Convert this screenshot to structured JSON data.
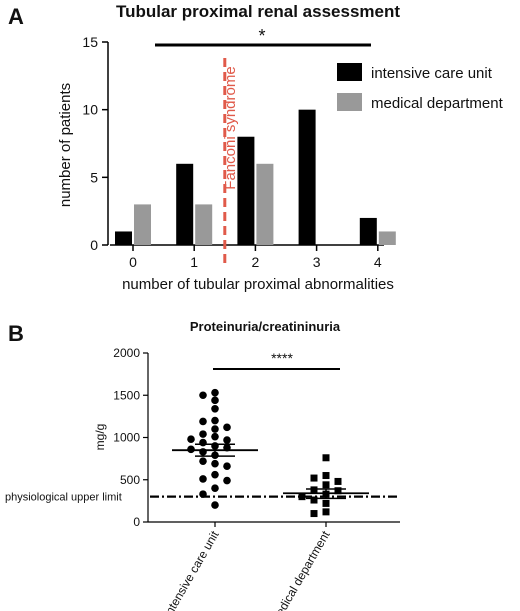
{
  "colors": {
    "icu": "#000000",
    "medical": "#999999",
    "fanconi_line": "#e05a4a",
    "axis": "#000000"
  },
  "panel_a": {
    "panel_label": "A",
    "significance": "*",
    "fanconi_label": "Fanconi syndrome",
    "fanconi_x_position": 1.5
  },
  "panel_b": {
    "panel_label": "B",
    "significance": "****",
    "reference_label": "physiological upper limit",
    "reference_value": 300
  },
  "chart_data": [
    {
      "type": "bar",
      "title": "Tubular proximal renal assessment",
      "xlabel": "number of tubular proximal abnormalities",
      "ylabel": "number of patients",
      "categories": [
        "0",
        "1",
        "2",
        "3",
        "4"
      ],
      "ylim": [
        0,
        15
      ],
      "yticks": [
        0,
        5,
        10,
        15
      ],
      "series": [
        {
          "name": "intensive care unit",
          "values": [
            1,
            6,
            8,
            10,
            2
          ],
          "color": "#000000"
        },
        {
          "name": "medical department",
          "values": [
            3,
            3,
            6,
            0,
            1
          ],
          "color": "#999999"
        }
      ],
      "legend": "top-right",
      "grid": false
    },
    {
      "type": "scatter",
      "title": "Proteinuria/creatininuria",
      "ylabel": "mg/g",
      "categories": [
        "Intensive care unit",
        "medical department"
      ],
      "ylim": [
        0,
        2000
      ],
      "yticks": [
        0,
        500,
        1000,
        1500,
        2000
      ],
      "series": [
        {
          "name": "Intensive care unit",
          "marker": "circle",
          "mean": 850,
          "sem_low": 780,
          "sem_high": 920,
          "values": [
            1530,
            1500,
            1440,
            1340,
            1200,
            1190,
            1120,
            1100,
            1040,
            1010,
            970,
            980,
            940,
            900,
            880,
            860,
            830,
            790,
            720,
            690,
            660,
            560,
            510,
            490,
            400,
            330,
            200
          ]
        },
        {
          "name": "medical department",
          "marker": "square",
          "mean": 340,
          "sem_low": 280,
          "sem_high": 390,
          "values": [
            760,
            550,
            520,
            480,
            440,
            380,
            370,
            330,
            300,
            260,
            220,
            120,
            100
          ]
        }
      ],
      "grid": false
    }
  ]
}
